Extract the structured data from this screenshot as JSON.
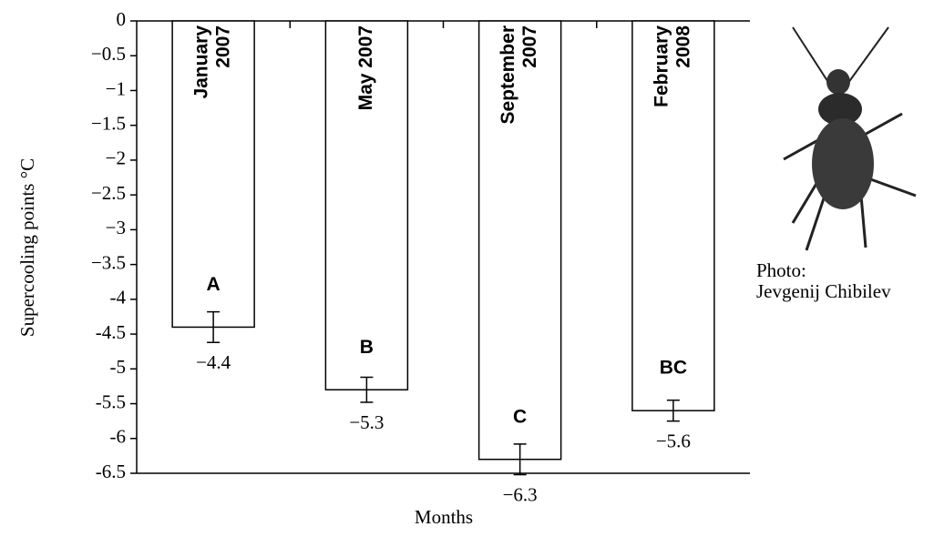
{
  "chart_data": {
    "type": "bar",
    "categories": [
      [
        "January",
        "2007"
      ],
      [
        "May 2007"
      ],
      [
        "September",
        "2007"
      ],
      [
        "February",
        "2008"
      ]
    ],
    "values": [
      -4.4,
      -5.3,
      -6.3,
      -5.6
    ],
    "value_labels": [
      "−4.4",
      "−5.3",
      "−6.3",
      "−5.6"
    ],
    "errors": [
      0.22,
      0.18,
      0.22,
      0.15
    ],
    "letters": [
      "A",
      "B",
      "C",
      "BC"
    ],
    "color": "#ffffff",
    "ylim": [
      0,
      -6.5
    ],
    "yticks": [
      0,
      {
        "value": -0.5,
        "label": "−0.5"
      },
      {
        "value": -1,
        "label": "−1"
      },
      {
        "value": -1.5,
        "label": "−1.5"
      },
      {
        "value": -2,
        "label": "−2"
      },
      {
        "value": -2.5,
        "label": "−2.5"
      },
      {
        "value": -3,
        "label": "−3"
      },
      {
        "value": -3.5,
        "label": "−3.5"
      },
      -4,
      -4.5,
      -5,
      -5.5,
      -6,
      -6.5
    ],
    "ylabel": "Supercooling points",
    "ylabel_unit": "°C",
    "xlabel": "Months",
    "photo_caption": [
      "Photo:",
      "Jevgenij Chibilev"
    ]
  }
}
